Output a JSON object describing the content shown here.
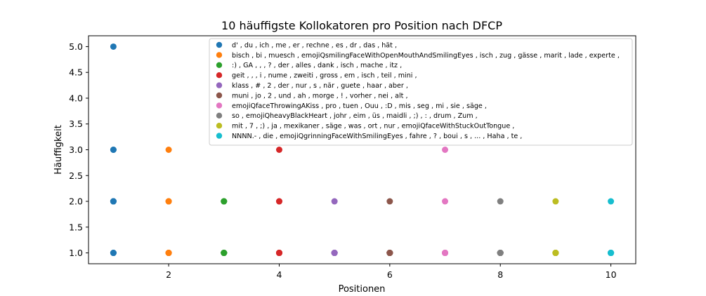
{
  "chart_data": {
    "type": "scatter",
    "title": "10 häuffigste Kollokatoren pro Position nach DFCP",
    "xlabel": "Positionen",
    "ylabel": "Häuffigkeit",
    "xlim": [
      0.55,
      10.45
    ],
    "ylim": [
      0.79,
      5.21
    ],
    "xticks": [
      2,
      4,
      6,
      8,
      10
    ],
    "yticks": [
      1.0,
      1.5,
      2.0,
      2.5,
      3.0,
      3.5,
      4.0,
      4.5,
      5.0
    ],
    "grid": false,
    "legend_placement": "top-right",
    "series": [
      {
        "name": "d' , du , ich , me , er , rechne , es , dr , das , hät ,",
        "color": "#1f77b4",
        "x": [
          1,
          1,
          1,
          1,
          1,
          1,
          1,
          1,
          1,
          1
        ],
        "y": [
          5,
          3,
          3,
          2,
          2,
          2,
          2,
          1,
          1,
          1
        ]
      },
      {
        "name": "bisch , bi , muesch , emojiQsmilingFaceWithOpenMouthAndSmilingEyes , isch , zug , gässe , marit , lade , experte ,",
        "color": "#ff7f0e",
        "x": [
          2,
          2,
          2,
          2,
          2,
          2,
          2,
          2,
          2,
          2
        ],
        "y": [
          3,
          2,
          2,
          2,
          1,
          1,
          1,
          1,
          1,
          1
        ]
      },
      {
        "name": ":) , GA , , , ? , der , alles , dank , isch , mache , itz ,",
        "color": "#2ca02c",
        "x": [
          3,
          3,
          3,
          3,
          3,
          3,
          3,
          3,
          3,
          3
        ],
        "y": [
          2,
          2,
          2,
          1,
          1,
          1,
          1,
          1,
          1,
          1
        ]
      },
      {
        "name": "geit , , , i , nume , zweiti , gross , em , isch , teil , mini ,",
        "color": "#d62728",
        "x": [
          4,
          4,
          4,
          4,
          4,
          4,
          4,
          4,
          4,
          4
        ],
        "y": [
          3,
          2,
          2,
          1,
          1,
          1,
          1,
          1,
          1,
          1
        ]
      },
      {
        "name": "klass , # , 2 , der , nur , s , när , guete , haar , aber ,",
        "color": "#9467bd",
        "x": [
          5,
          5,
          5,
          5,
          5,
          5,
          5,
          5,
          5,
          5
        ],
        "y": [
          2,
          1,
          1,
          1,
          1,
          1,
          1,
          1,
          1,
          1
        ]
      },
      {
        "name": "muni , jo , 2 , und , ah , morge , ! , vorher , nei , alt ,",
        "color": "#8c564b",
        "x": [
          6,
          6,
          6,
          6,
          6,
          6,
          6,
          6,
          6,
          6
        ],
        "y": [
          2,
          1,
          1,
          1,
          1,
          1,
          1,
          1,
          1,
          1
        ]
      },
      {
        "name": "emojiQfaceThrowingAKiss , pro , tuen , Ouu , :D , mis , seg , mi , sie , säge ,",
        "color": "#e377c2",
        "x": [
          7,
          7,
          7,
          7,
          7,
          7,
          7,
          7,
          7,
          7
        ],
        "y": [
          3,
          2,
          1,
          1,
          1,
          1,
          1,
          1,
          1,
          1
        ]
      },
      {
        "name": "so , emojiQheavyBlackHeart , johr , eim , üs , maidli , ;) , : , drum , Zum ,",
        "color": "#7f7f7f",
        "x": [
          8,
          8,
          8,
          8,
          8,
          8,
          8,
          8,
          8,
          8
        ],
        "y": [
          2,
          1,
          1,
          1,
          1,
          1,
          1,
          1,
          1,
          1
        ]
      },
      {
        "name": "mit , 7 , ;) , ja , mexikaner , säge , was , ort , nur , emojiQfaceWithStuckOutTongue ,",
        "color": "#bcbd22",
        "x": [
          9,
          9,
          9,
          9,
          9,
          9,
          9,
          9,
          9,
          9
        ],
        "y": [
          2,
          1,
          1,
          1,
          1,
          1,
          1,
          1,
          1,
          1
        ]
      },
      {
        "name": "NNNN.- , die , emojiQgrinningFaceWithSmilingEyes , fahre , ? , boui , s , ... , Haha , te ,",
        "color": "#17becf",
        "x": [
          10,
          10,
          10,
          10,
          10,
          10,
          10,
          10,
          10,
          10
        ],
        "y": [
          2,
          1,
          1,
          1,
          1,
          1,
          1,
          1,
          1,
          1
        ]
      }
    ]
  }
}
